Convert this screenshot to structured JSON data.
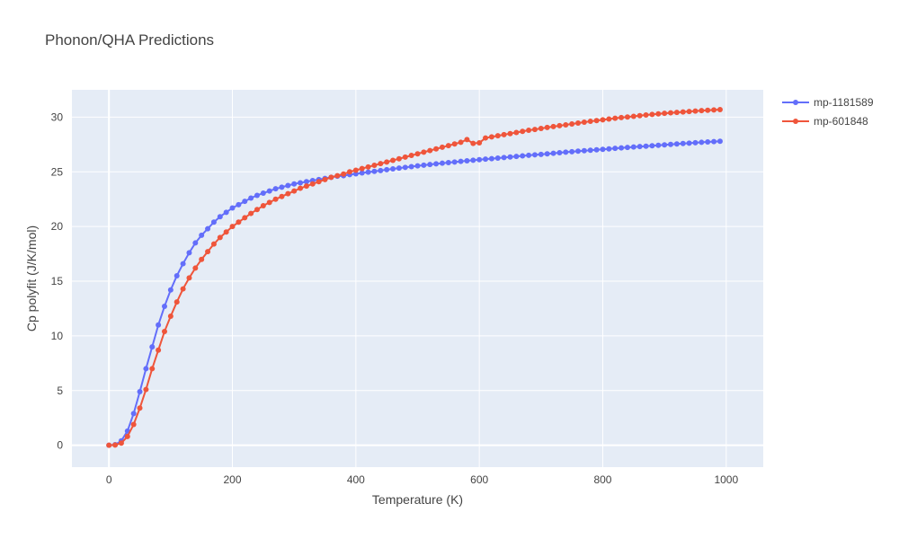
{
  "chart_data": {
    "type": "line",
    "title": "Phonon/QHA Predictions",
    "xlabel": "Temperature (K)",
    "ylabel": "Cp polyfit (J/K/mol)",
    "xlim": [
      -60,
      1060
    ],
    "ylim": [
      -2,
      32.5
    ],
    "xticks": [
      0,
      200,
      400,
      600,
      800,
      1000
    ],
    "yticks": [
      0,
      5,
      10,
      15,
      20,
      25,
      30
    ],
    "grid": true,
    "legend_position": "top-right",
    "series": [
      {
        "name": "mp-1181589",
        "color": "#636efa",
        "x": [
          0,
          10,
          20,
          30,
          40,
          50,
          60,
          70,
          80,
          90,
          100,
          110,
          120,
          130,
          140,
          150,
          160,
          170,
          180,
          190,
          200,
          210,
          220,
          230,
          240,
          250,
          260,
          270,
          280,
          290,
          300,
          310,
          320,
          330,
          340,
          350,
          360,
          370,
          380,
          390,
          400,
          410,
          420,
          430,
          440,
          450,
          460,
          470,
          480,
          490,
          500,
          510,
          520,
          530,
          540,
          550,
          560,
          570,
          580,
          590,
          600,
          610,
          620,
          630,
          640,
          650,
          660,
          670,
          680,
          690,
          700,
          710,
          720,
          730,
          740,
          750,
          760,
          770,
          780,
          790,
          800,
          810,
          820,
          830,
          840,
          850,
          860,
          870,
          880,
          890,
          900,
          910,
          920,
          930,
          940,
          950,
          960,
          970,
          980,
          990
        ],
        "y": [
          0,
          0.05,
          0.4,
          1.3,
          2.9,
          4.9,
          7.0,
          9.0,
          11.0,
          12.7,
          14.2,
          15.5,
          16.6,
          17.6,
          18.5,
          19.2,
          19.8,
          20.4,
          20.9,
          21.3,
          21.7,
          22.0,
          22.3,
          22.6,
          22.85,
          23.05,
          23.25,
          23.45,
          23.6,
          23.75,
          23.9,
          24.0,
          24.1,
          24.2,
          24.3,
          24.4,
          24.5,
          24.6,
          24.65,
          24.75,
          24.82,
          24.9,
          24.97,
          25.05,
          25.12,
          25.2,
          25.27,
          25.34,
          25.41,
          25.48,
          25.55,
          25.61,
          25.67,
          25.73,
          25.79,
          25.85,
          25.9,
          25.96,
          26.01,
          26.06,
          26.11,
          26.16,
          26.21,
          26.26,
          26.31,
          26.36,
          26.41,
          26.46,
          26.51,
          26.56,
          26.6,
          26.65,
          26.7,
          26.75,
          26.8,
          26.84,
          26.89,
          26.93,
          26.98,
          27.02,
          27.06,
          27.1,
          27.15,
          27.19,
          27.23,
          27.27,
          27.31,
          27.35,
          27.39,
          27.43,
          27.47,
          27.51,
          27.55,
          27.59,
          27.62,
          27.66,
          27.7,
          27.74,
          27.77,
          27.8
        ]
      },
      {
        "name": "mp-601848",
        "color": "#ef553b",
        "x": [
          0,
          10,
          20,
          30,
          40,
          50,
          60,
          70,
          80,
          90,
          100,
          110,
          120,
          130,
          140,
          150,
          160,
          170,
          180,
          190,
          200,
          210,
          220,
          230,
          240,
          250,
          260,
          270,
          280,
          290,
          300,
          310,
          320,
          330,
          340,
          350,
          360,
          370,
          380,
          390,
          400,
          410,
          420,
          430,
          440,
          450,
          460,
          470,
          480,
          490,
          500,
          510,
          520,
          530,
          540,
          550,
          560,
          570,
          580,
          590,
          600,
          610,
          620,
          630,
          640,
          650,
          660,
          670,
          680,
          690,
          700,
          710,
          720,
          730,
          740,
          750,
          760,
          770,
          780,
          790,
          800,
          810,
          820,
          830,
          840,
          850,
          860,
          870,
          880,
          890,
          900,
          910,
          920,
          930,
          940,
          950,
          960,
          970,
          980,
          990
        ],
        "y": [
          0,
          0.02,
          0.2,
          0.8,
          1.9,
          3.4,
          5.1,
          7.0,
          8.7,
          10.4,
          11.8,
          13.1,
          14.3,
          15.3,
          16.2,
          17.0,
          17.7,
          18.4,
          19.0,
          19.5,
          20.0,
          20.4,
          20.8,
          21.2,
          21.55,
          21.9,
          22.2,
          22.5,
          22.75,
          23.0,
          23.25,
          23.5,
          23.7,
          23.9,
          24.1,
          24.3,
          24.5,
          24.65,
          24.8,
          25.0,
          25.15,
          25.3,
          25.45,
          25.6,
          25.75,
          25.9,
          26.05,
          26.2,
          26.35,
          26.5,
          26.65,
          26.8,
          26.95,
          27.1,
          27.25,
          27.4,
          27.55,
          27.7,
          27.95,
          27.6,
          27.65,
          28.1,
          28.2,
          28.3,
          28.4,
          28.5,
          28.6,
          28.7,
          28.8,
          28.88,
          28.97,
          29.06,
          29.14,
          29.22,
          29.3,
          29.38,
          29.46,
          29.54,
          29.62,
          29.69,
          29.76,
          29.83,
          29.9,
          29.96,
          30.02,
          30.08,
          30.14,
          30.2,
          30.25,
          30.3,
          30.35,
          30.4,
          30.44,
          30.48,
          30.52,
          30.56,
          30.6,
          30.63,
          30.66,
          30.69
        ]
      }
    ]
  }
}
